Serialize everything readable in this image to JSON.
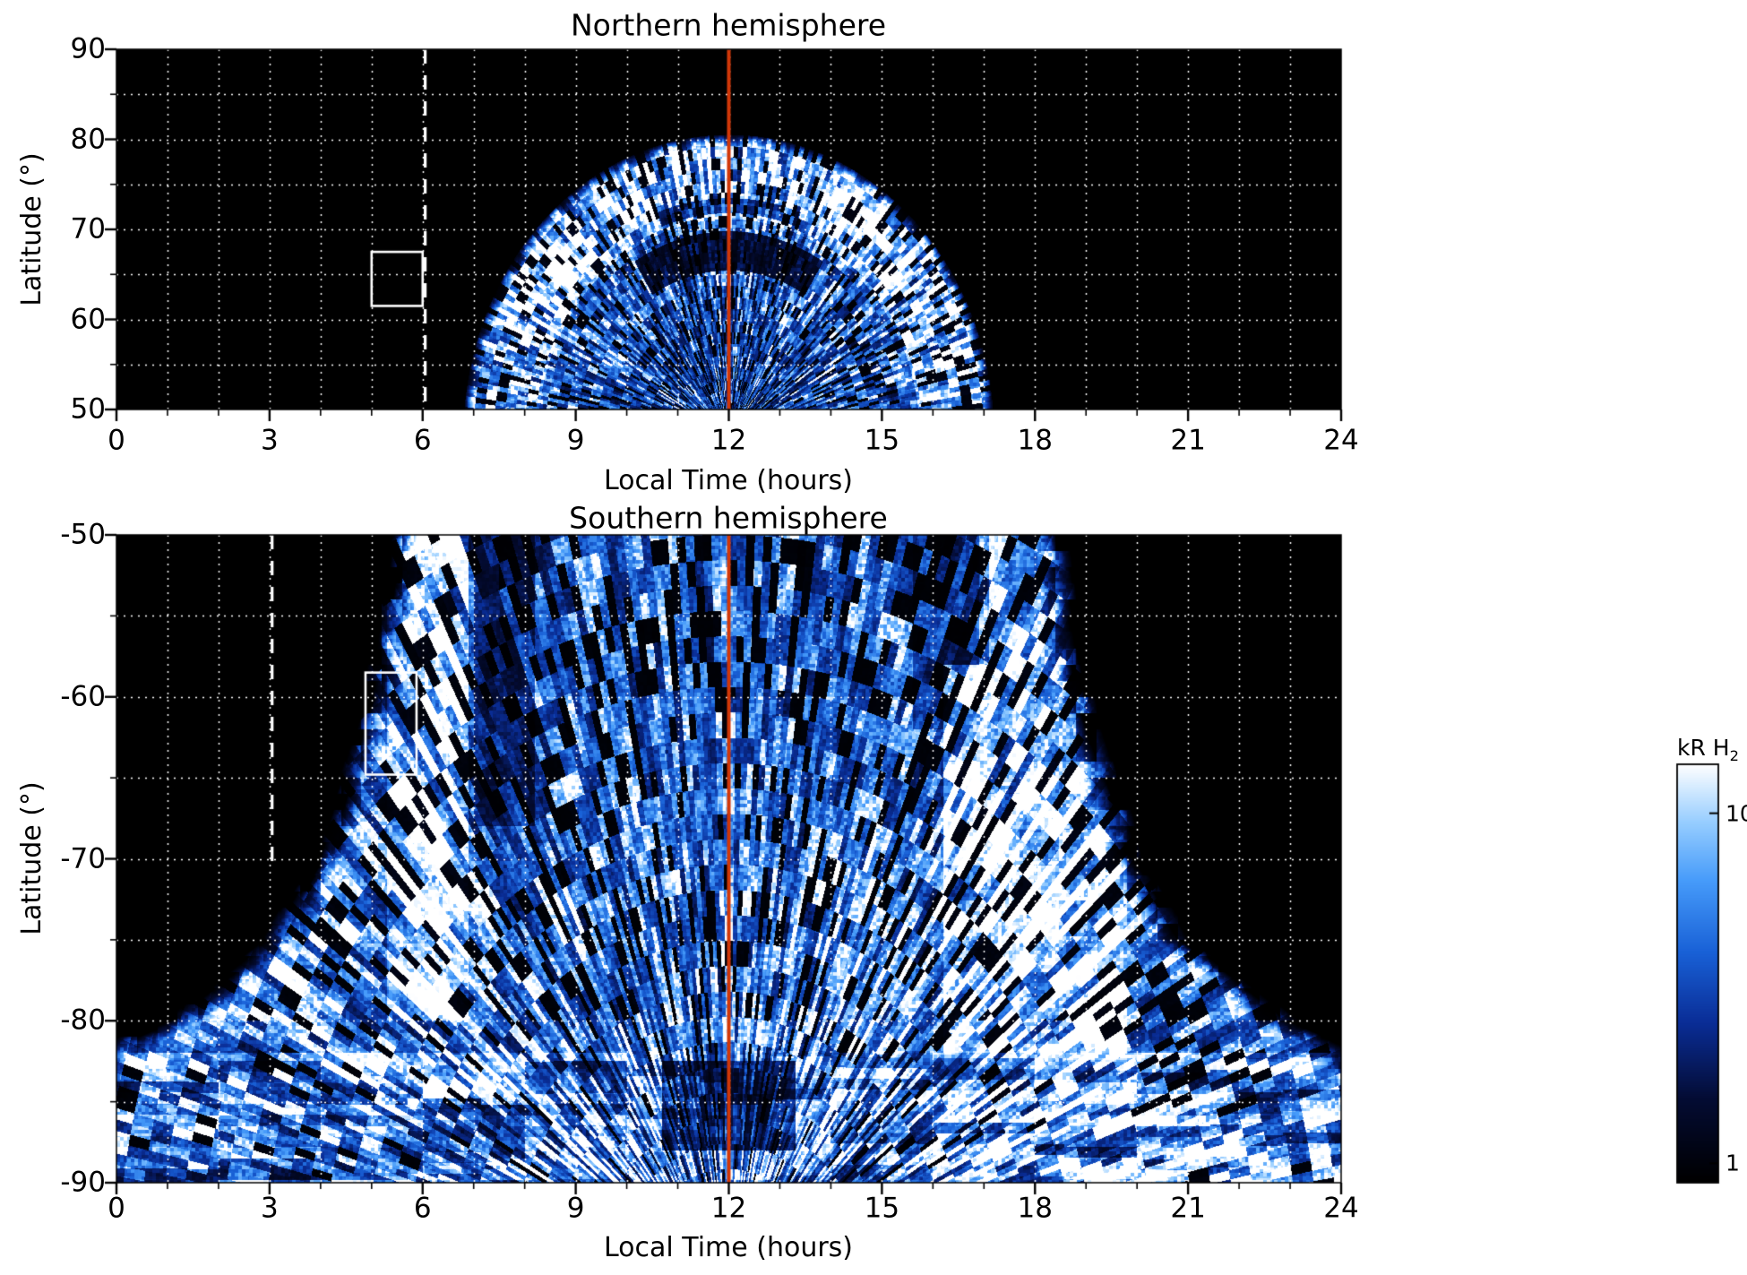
{
  "chart_data": [
    {
      "id": "north",
      "type": "heatmap",
      "title": "Northern hemisphere",
      "xlabel": "Local Time (hours)",
      "ylabel": "Latitude (°)",
      "xlim": [
        0,
        24
      ],
      "ylim": [
        90,
        50
      ],
      "xticks": [
        0,
        3,
        6,
        9,
        12,
        15,
        18,
        21,
        24
      ],
      "yticks": [
        90,
        80,
        70,
        60,
        50
      ],
      "x_minor_step": 1,
      "y_minor_step": 5,
      "grid": "dotted white every 1 h and 5 deg",
      "value_units": "kR H2",
      "colormap_stops": [
        [
          0,
          "#000000"
        ],
        [
          0.2,
          "#040c34"
        ],
        [
          0.38,
          "#0a2d96"
        ],
        [
          0.55,
          "#1961d7"
        ],
        [
          0.72,
          "#469bfa"
        ],
        [
          0.86,
          "#96cdff"
        ],
        [
          1,
          "#ffffff"
        ]
      ],
      "description": "Speckled H2 auroral emission confined to a dayside dome centred on 12 h local time: black (no data) outside ~7-17 h; emission reaches ~80 deg at noon, bright arcs near 70-75 deg, darker patches near 65-70 deg around noon, dense blue speckle down to 50 deg.",
      "model": {
        "center_local_time": 12,
        "center_lat": 47,
        "rx_hours": 5.2,
        "ry_deg": 33.5
      },
      "annotations": {
        "noon_line_x": 12,
        "dashed_line": {
          "x": 6.05,
          "lat_from": 90,
          "lat_to": 50
        },
        "box": {
          "x_from": 5.0,
          "x_to": 6.0,
          "lat_from": 67.5,
          "lat_to": 61.5
        }
      }
    },
    {
      "id": "south",
      "type": "heatmap",
      "title": "Southern hemisphere",
      "xlabel": "Local Time (hours)",
      "ylabel": "Latitude (°)",
      "xlim": [
        0,
        24
      ],
      "ylim": [
        -50,
        -90
      ],
      "xticks": [
        0,
        3,
        6,
        9,
        12,
        15,
        18,
        21,
        24
      ],
      "yticks": [
        -50,
        -60,
        -70,
        -80,
        -90
      ],
      "x_minor_step": 1,
      "y_minor_step": 5,
      "grid": "dotted white every 1 h and 5 deg",
      "value_units": "kR H2",
      "colormap_stops": [
        [
          0,
          "#000000"
        ],
        [
          0.2,
          "#040c34"
        ],
        [
          0.38,
          "#0a2d96"
        ],
        [
          0.55,
          "#1961d7"
        ],
        [
          0.72,
          "#469bfa"
        ],
        [
          0.86,
          "#96cdff"
        ],
        [
          1,
          "#ffffff"
        ]
      ],
      "description": "Dense speckled emission spanning ~5.5-18.5 h at -50 deg, widening with latitude to cover all local times below ~-82 deg; bright band near 6 h, bright white patches 17-19.5 h between -60 and -84 deg, layered horizontal bands below -82 deg and a dark notch near noon below -83 deg.",
      "model": {
        "half_width_hours_by_latitude": [
          [
            -50,
            6.5
          ],
          [
            -60,
            7.0
          ],
          [
            -70,
            8.0
          ],
          [
            -75,
            9.0
          ],
          [
            -80,
            11.0
          ],
          [
            -82,
            12.5
          ],
          [
            -90,
            13.0
          ]
        ],
        "bright_band_local_time": [
          5.3,
          6.9
        ],
        "bright_region": {
          "local_time": [
            16.2,
            19.8
          ],
          "lat": [
            -58,
            -84
          ]
        },
        "banded_zone_start_lat": -82
      },
      "annotations": {
        "noon_line_x": 12,
        "dashed_line": {
          "x": 3.05,
          "lat_from": -50,
          "lat_to": -70.6
        },
        "box": {
          "x_from": 4.88,
          "x_to": 5.88,
          "lat_from": -58.5,
          "lat_to": -64.8
        }
      }
    }
  ],
  "colorbar": {
    "title_main": "kR H",
    "title_sub": "2",
    "scale": "log",
    "value_range": [
      0.88,
      13.8
    ],
    "ticks": [
      {
        "label": "10",
        "value": 10
      },
      {
        "label": "1",
        "value": 1
      }
    ]
  },
  "colors": {
    "figure_background": "#ffffff",
    "plot_background": "#000000",
    "grid": "#ffffff",
    "noon_line": "#d13708",
    "annotation_white": "#ffffff",
    "text": "#000000"
  }
}
